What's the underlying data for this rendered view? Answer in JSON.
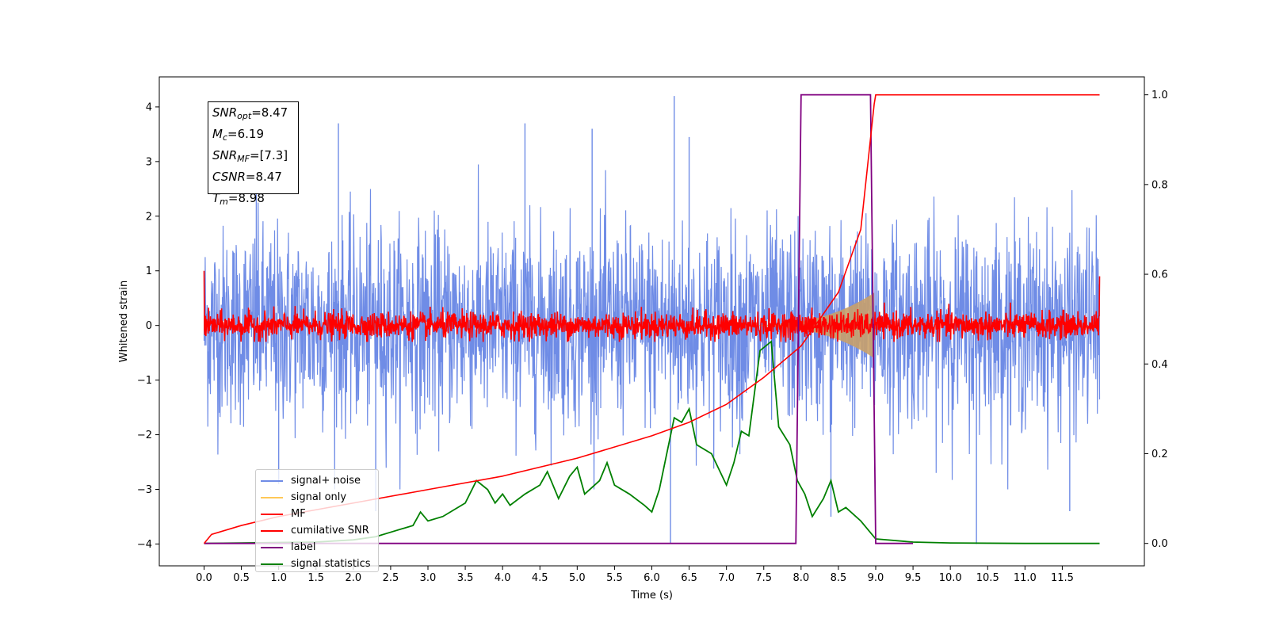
{
  "info_box": {
    "lines": [
      {
        "symbol": "SNR",
        "sub": "opt",
        "value": "=8.47"
      },
      {
        "symbol": "M",
        "sub": "c",
        "value": "=6.19"
      },
      {
        "symbol": "SNR",
        "sub": "MF",
        "value": "=[7.3]"
      },
      {
        "symbol": "CSNR",
        "sub": "",
        "value": "=8.47"
      },
      {
        "symbol": "T",
        "sub": "m",
        "value": "=8.98"
      }
    ]
  },
  "legend": {
    "placement": "lower-left",
    "entries": [
      {
        "label": "signal+ noise",
        "color": "#6f8ce6"
      },
      {
        "label": "signal only",
        "color": "#ffc857"
      },
      {
        "label": "MF",
        "color": "#ff0000"
      },
      {
        "label": "cumilative SNR",
        "color": "#ff0000"
      },
      {
        "label": "label",
        "color": "#800080"
      },
      {
        "label": "signal statistics",
        "color": "#008000"
      }
    ]
  },
  "chart_data": {
    "type": "line",
    "xlabel": "Time (s)",
    "ylabel": "Whitened strain",
    "xlim": [
      -0.6,
      12.6
    ],
    "ylim": [
      -4.4,
      4.55
    ],
    "y2lim": [
      -0.05,
      1.04
    ],
    "grid": false,
    "x_ticks": [
      "0.0",
      "0.5",
      "1.0",
      "1.5",
      "2.0",
      "2.5",
      "3.0",
      "3.5",
      "4.0",
      "4.5",
      "5.0",
      "5.5",
      "6.0",
      "6.5",
      "7.0",
      "7.5",
      "8.0",
      "8.5",
      "9.0",
      "9.5",
      "10.0",
      "10.5",
      "11.0",
      "11.5"
    ],
    "y_ticks": [
      "4",
      "3",
      "2",
      "1",
      "0",
      "−1",
      "−2",
      "−3",
      "−4"
    ],
    "y2_ticks": [
      "1.0",
      "0.8",
      "0.6",
      "0.4",
      "0.2",
      "0.0"
    ],
    "series": [
      {
        "name": "signal+ noise",
        "axis": "left",
        "color": "#6f8ce6",
        "x_range": [
          0,
          12
        ],
        "noise_std": 0.9,
        "spikes": [
          [
            0.7,
            3.3
          ],
          [
            1.0,
            -2.9
          ],
          [
            1.8,
            3.7
          ],
          [
            2.3,
            -3.4
          ],
          [
            4.3,
            3.7
          ],
          [
            5.2,
            3.6
          ],
          [
            6.25,
            -4.0
          ],
          [
            6.3,
            4.2
          ],
          [
            6.5,
            3.45
          ],
          [
            8.4,
            -3.5
          ],
          [
            10.35,
            -4.0
          ],
          [
            11.6,
            -3.4
          ]
        ]
      },
      {
        "name": "signal only",
        "axis": "left",
        "color": "#c8a06a",
        "chirp": {
          "t_start": 7.0,
          "t_merge": 8.98,
          "peak_amplitude": 0.6
        }
      },
      {
        "name": "MF",
        "axis": "left",
        "color": "#ff0000",
        "x_range": [
          0,
          12
        ],
        "noise_std": 0.12,
        "endpoints": [
          [
            0.0,
            1.0
          ],
          [
            12.0,
            0.9
          ]
        ]
      },
      {
        "name": "cumilative SNR",
        "axis": "right",
        "color": "#ff0000",
        "points": [
          [
            0.0,
            0.0
          ],
          [
            0.1,
            0.02
          ],
          [
            0.5,
            0.04
          ],
          [
            1.0,
            0.06
          ],
          [
            1.5,
            0.075
          ],
          [
            2.0,
            0.09
          ],
          [
            3.0,
            0.12
          ],
          [
            4.0,
            0.15
          ],
          [
            5.0,
            0.19
          ],
          [
            6.0,
            0.24
          ],
          [
            6.5,
            0.27
          ],
          [
            7.0,
            0.31
          ],
          [
            7.5,
            0.37
          ],
          [
            8.0,
            0.44
          ],
          [
            8.5,
            0.56
          ],
          [
            8.8,
            0.7
          ],
          [
            8.98,
            0.98
          ],
          [
            9.0,
            1.0
          ],
          [
            12.0,
            1.0
          ]
        ]
      },
      {
        "name": "label",
        "axis": "right",
        "color": "#800080",
        "points": [
          [
            0.0,
            0.0
          ],
          [
            7.93,
            0.0
          ],
          [
            8.0,
            1.0
          ],
          [
            8.93,
            1.0
          ],
          [
            9.0,
            0.0
          ],
          [
            9.5,
            0.0
          ]
        ]
      },
      {
        "name": "signal statistics",
        "axis": "right",
        "color": "#008000",
        "points": [
          [
            0.0,
            0.0
          ],
          [
            0.5,
            0.001
          ],
          [
            1.0,
            0.002
          ],
          [
            1.5,
            0.003
          ],
          [
            2.0,
            0.008
          ],
          [
            2.3,
            0.015
          ],
          [
            2.5,
            0.025
          ],
          [
            2.8,
            0.04
          ],
          [
            2.9,
            0.07
          ],
          [
            3.0,
            0.05
          ],
          [
            3.2,
            0.06
          ],
          [
            3.5,
            0.09
          ],
          [
            3.65,
            0.14
          ],
          [
            3.8,
            0.12
          ],
          [
            3.9,
            0.09
          ],
          [
            4.0,
            0.11
          ],
          [
            4.1,
            0.085
          ],
          [
            4.3,
            0.11
          ],
          [
            4.5,
            0.13
          ],
          [
            4.6,
            0.16
          ],
          [
            4.75,
            0.1
          ],
          [
            4.9,
            0.15
          ],
          [
            5.0,
            0.17
          ],
          [
            5.1,
            0.11
          ],
          [
            5.3,
            0.14
          ],
          [
            5.4,
            0.18
          ],
          [
            5.5,
            0.13
          ],
          [
            5.7,
            0.11
          ],
          [
            5.9,
            0.085
          ],
          [
            6.0,
            0.07
          ],
          [
            6.1,
            0.12
          ],
          [
            6.2,
            0.2
          ],
          [
            6.3,
            0.28
          ],
          [
            6.4,
            0.27
          ],
          [
            6.5,
            0.3
          ],
          [
            6.6,
            0.22
          ],
          [
            6.8,
            0.2
          ],
          [
            7.0,
            0.13
          ],
          [
            7.1,
            0.18
          ],
          [
            7.2,
            0.25
          ],
          [
            7.3,
            0.24
          ],
          [
            7.45,
            0.43
          ],
          [
            7.6,
            0.45
          ],
          [
            7.7,
            0.26
          ],
          [
            7.85,
            0.22
          ],
          [
            7.95,
            0.14
          ],
          [
            8.05,
            0.11
          ],
          [
            8.15,
            0.06
          ],
          [
            8.3,
            0.1
          ],
          [
            8.4,
            0.14
          ],
          [
            8.5,
            0.07
          ],
          [
            8.6,
            0.08
          ],
          [
            8.8,
            0.05
          ],
          [
            9.0,
            0.01
          ],
          [
            9.5,
            0.003
          ],
          [
            10.0,
            0.001
          ],
          [
            11.0,
            0.0
          ],
          [
            12.0,
            0.0
          ]
        ]
      }
    ]
  }
}
